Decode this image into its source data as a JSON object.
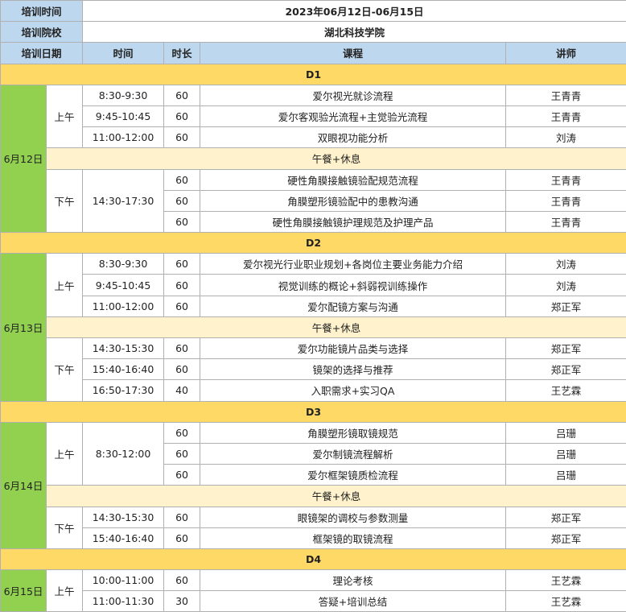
{
  "header": {
    "training_time_label": "培训时间",
    "training_time": "2023年06月12日-06月15日",
    "school_label": "培训院校",
    "school": "湖北科技学院",
    "columns": [
      "培训日期",
      "时间",
      "时长",
      "课程",
      "讲师"
    ]
  },
  "lunch_label": "午餐+休息",
  "colors": {
    "header": "#bdd7ee",
    "day_bar": "#ffd966",
    "date_cell": "#92d050",
    "lunch": "#fff2cc"
  },
  "days": [
    {
      "day": "D1",
      "date": "6月12日",
      "sessions": [
        {
          "period": "上午",
          "time_groups": [
            {
              "time": "8:30-9:30",
              "items": [
                {
                  "dur": "60",
                  "course": "爱尔视光就诊流程",
                  "teacher": "王青青"
                }
              ]
            },
            {
              "time": "9:45-10:45",
              "items": [
                {
                  "dur": "60",
                  "course": "爱尔客观验光流程+主觉验光流程",
                  "teacher": "王青青"
                }
              ]
            },
            {
              "time": "11:00-12:00",
              "items": [
                {
                  "dur": "60",
                  "course": "双眼视功能分析",
                  "teacher": "刘涛"
                }
              ]
            }
          ]
        },
        {
          "period": "下午",
          "time_groups": [
            {
              "time": "14:30-17:30",
              "items": [
                {
                  "dur": "60",
                  "course": "硬性角膜接触镜验配规范流程",
                  "teacher": "王青青"
                },
                {
                  "dur": "60",
                  "course": "角膜塑形镜验配中的患教沟通",
                  "teacher": "王青青"
                },
                {
                  "dur": "60",
                  "course": "硬性角膜接触镜护理规范及护理产品",
                  "teacher": "王青青"
                }
              ]
            }
          ]
        }
      ]
    },
    {
      "day": "D2",
      "date": "6月13日",
      "sessions": [
        {
          "period": "上午",
          "time_groups": [
            {
              "time": "8:30-9:30",
              "items": [
                {
                  "dur": "60",
                  "course": "爱尔视光行业职业规划+各岗位主要业务能力介绍",
                  "teacher": "刘涛"
                }
              ]
            },
            {
              "time": "9:45-10:45",
              "items": [
                {
                  "dur": "60",
                  "course": "视觉训练的概论+斜弱视训练操作",
                  "teacher": "刘涛"
                }
              ]
            },
            {
              "time": "11:00-12:00",
              "items": [
                {
                  "dur": "60",
                  "course": "爱尔配镜方案与沟通",
                  "teacher": "郑正军"
                }
              ]
            }
          ]
        },
        {
          "period": "下午",
          "time_groups": [
            {
              "time": "14:30-15:30",
              "items": [
                {
                  "dur": "60",
                  "course": "爱尔功能镜片品类与选择",
                  "teacher": "郑正军"
                }
              ]
            },
            {
              "time": "15:40-16:40",
              "items": [
                {
                  "dur": "60",
                  "course": "镜架的选择与推荐",
                  "teacher": "郑正军"
                }
              ]
            },
            {
              "time": "16:50-17:30",
              "items": [
                {
                  "dur": "40",
                  "course": "入职需求+实习QA",
                  "teacher": "王艺霖"
                }
              ]
            }
          ]
        }
      ]
    },
    {
      "day": "D3",
      "date": "6月14日",
      "sessions": [
        {
          "period": "上午",
          "time_groups": [
            {
              "time": "8:30-12:00",
              "items": [
                {
                  "dur": "60",
                  "course": "角膜塑形镜取镜规范",
                  "teacher": "吕珊"
                },
                {
                  "dur": "60",
                  "course": "爱尔制镜流程解析",
                  "teacher": "吕珊"
                },
                {
                  "dur": "60",
                  "course": "爱尔框架镜质检流程",
                  "teacher": "吕珊"
                }
              ]
            }
          ]
        },
        {
          "period": "下午",
          "time_groups": [
            {
              "time": "14:30-15:30",
              "items": [
                {
                  "dur": "60",
                  "course": "眼镜架的调校与参数测量",
                  "teacher": "郑正军"
                }
              ]
            },
            {
              "time": "15:40-16:40",
              "items": [
                {
                  "dur": "60",
                  "course": "框架镜的取镜流程",
                  "teacher": "郑正军"
                }
              ]
            }
          ]
        }
      ]
    },
    {
      "day": "D4",
      "date": "6月15日",
      "sessions": [
        {
          "period": "上午",
          "time_groups": [
            {
              "time": "10:00-11:00",
              "items": [
                {
                  "dur": "60",
                  "course": "理论考核",
                  "teacher": "王艺霖"
                }
              ]
            },
            {
              "time": "11:00-11:30",
              "items": [
                {
                  "dur": "30",
                  "course": "答疑+培训总结",
                  "teacher": "王艺霖"
                }
              ]
            }
          ]
        }
      ]
    }
  ]
}
